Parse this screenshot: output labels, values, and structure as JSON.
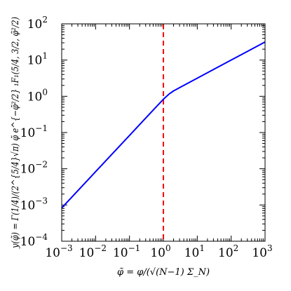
{
  "chart_data": {
    "type": "line",
    "title": "",
    "xlabel": "φ̃ = φ/(√(N−1) Σ_N)",
    "ylabel": "y(φ̃) = Γ(1/4)/(2^{5/4}√π) φ̃ e^{−φ̃²/2} ₁F₁(5/4, 3/2, φ̃²/2)",
    "xscale": "log",
    "yscale": "log",
    "xlim": [
      0.001,
      1000
    ],
    "ylim": [
      0.0001,
      100
    ],
    "x_ticks": [
      {
        "base": "10",
        "exp": "−3",
        "value": 0.001
      },
      {
        "base": "10",
        "exp": "−2",
        "value": 0.01
      },
      {
        "base": "10",
        "exp": "−1",
        "value": 0.1
      },
      {
        "base": "10",
        "exp": "0",
        "value": 1
      },
      {
        "base": "10",
        "exp": "1",
        "value": 10
      },
      {
        "base": "10",
        "exp": "2",
        "value": 100
      },
      {
        "base": "10",
        "exp": "3",
        "value": 1000
      }
    ],
    "y_ticks": [
      {
        "base": "10",
        "exp": "−4",
        "value": 0.0001
      },
      {
        "base": "10",
        "exp": "−3",
        "value": 0.001
      },
      {
        "base": "10",
        "exp": "−2",
        "value": 0.01
      },
      {
        "base": "10",
        "exp": "−1",
        "value": 0.1
      },
      {
        "base": "10",
        "exp": "0",
        "value": 1
      },
      {
        "base": "10",
        "exp": "1",
        "value": 10
      },
      {
        "base": "10",
        "exp": "2",
        "value": 100
      }
    ],
    "series": [
      {
        "color": "#0000ff",
        "x": [
          0.001,
          0.01,
          0.1,
          0.3,
          0.6,
          1,
          1.5,
          2,
          3,
          5,
          10,
          30,
          100,
          300,
          1000
        ],
        "y": [
          0.00083,
          0.0083,
          0.083,
          0.25,
          0.5,
          0.83,
          1.17,
          1.41,
          1.73,
          2.24,
          3.16,
          5.48,
          10.0,
          17.3,
          31.6
        ]
      }
    ],
    "reference_lines": [
      {
        "orientation": "vertical",
        "x": 1,
        "color": "#ff0000",
        "style": "dashed"
      }
    ],
    "grid": false,
    "legend": "none",
    "colors": {
      "curve": "#0000ff",
      "reference": "#ff0000",
      "axes": "#000000"
    }
  }
}
